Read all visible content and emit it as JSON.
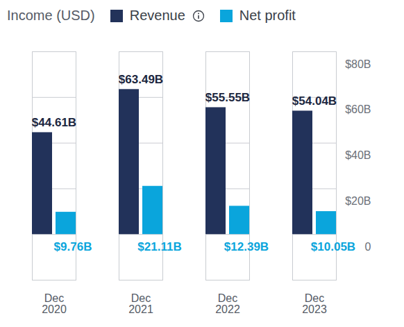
{
  "chart_data": {
    "type": "bar",
    "title": "Income (USD)",
    "categories": [
      "Dec 2020",
      "Dec 2021",
      "Dec 2022",
      "Dec 2023"
    ],
    "series": [
      {
        "name": "Revenue",
        "color": "#22325a",
        "values": [
          44.61,
          63.49,
          55.55,
          54.04
        ],
        "value_labels": [
          "$44.61B",
          "$63.49B",
          "$55.55B",
          "$54.04B"
        ]
      },
      {
        "name": "Net profit",
        "color": "#0aa5dc",
        "values": [
          9.76,
          21.11,
          12.39,
          10.05
        ],
        "value_labels": [
          "$9.76B",
          "$21.11B",
          "$12.39B",
          "$10.05B"
        ]
      }
    ],
    "ylim": [
      -20,
      80
    ],
    "yticks": [
      0,
      {
        "value": 20,
        "label": "$20B"
      },
      {
        "value": 40,
        "label": "$40B"
      },
      {
        "value": 60,
        "label": "$60B"
      },
      {
        "value": 80,
        "label": "$80B"
      }
    ],
    "grid": true,
    "legend": "top-left",
    "data_labels": true
  }
}
